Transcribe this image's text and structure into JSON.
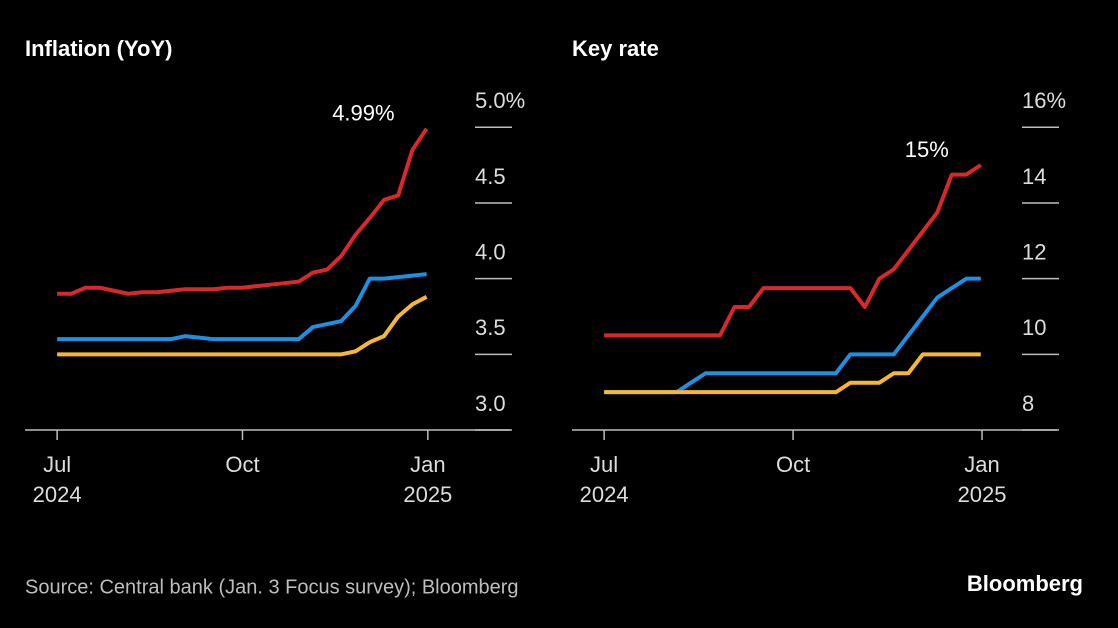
{
  "chart_data": [
    {
      "type": "line",
      "title": "Inflation (YoY)",
      "x": [
        7.0,
        7.23,
        7.46,
        7.69,
        7.92,
        8.15,
        8.38,
        8.61,
        8.84,
        9.07,
        9.3,
        9.53,
        9.76,
        9.99,
        10.22,
        10.45,
        10.68,
        10.91,
        11.14,
        11.37,
        11.6,
        11.83,
        12.06,
        12.29,
        12.52,
        12.75,
        12.98
      ],
      "series": [
        {
          "color": "#d9282d",
          "values": [
            3.9,
            3.9,
            3.94,
            3.94,
            3.92,
            3.9,
            3.91,
            3.91,
            3.92,
            3.93,
            3.93,
            3.93,
            3.94,
            3.94,
            3.95,
            3.96,
            3.97,
            3.98,
            4.04,
            4.06,
            4.15,
            4.29,
            4.4,
            4.52,
            4.55,
            4.85,
            4.99
          ],
          "value_labels": [
            null,
            null,
            null,
            null,
            null,
            null,
            null,
            null,
            null,
            null,
            null,
            null,
            null,
            null,
            null,
            null,
            null,
            null,
            null,
            null,
            null,
            null,
            null,
            null,
            null,
            null,
            "4.99%"
          ]
        },
        {
          "color": "#1e8fe1",
          "values": [
            3.6,
            3.6,
            3.6,
            3.6,
            3.6,
            3.6,
            3.6,
            3.6,
            3.6,
            3.62,
            3.61,
            3.6,
            3.6,
            3.6,
            3.6,
            3.6,
            3.6,
            3.6,
            3.68,
            3.7,
            3.72,
            3.82,
            4.0,
            4.0,
            4.01,
            4.02,
            4.03
          ]
        },
        {
          "color": "#f6b732",
          "values": [
            3.5,
            3.5,
            3.5,
            3.5,
            3.5,
            3.5,
            3.5,
            3.5,
            3.5,
            3.5,
            3.5,
            3.5,
            3.5,
            3.5,
            3.5,
            3.5,
            3.5,
            3.5,
            3.5,
            3.5,
            3.5,
            3.52,
            3.58,
            3.62,
            3.75,
            3.83,
            3.88
          ]
        }
      ],
      "xlim": [
        6.48,
        14.33
      ],
      "xticks": [
        {
          "value": 7,
          "label": "Jul 2024"
        },
        {
          "value": 10,
          "label": "Oct"
        },
        {
          "value": 13,
          "label": "Jan 2025"
        }
      ],
      "ylim": [
        3.0,
        5.2
      ],
      "yticks": [
        {
          "value": 3,
          "label": "3.0"
        },
        3.5,
        {
          "value": 4,
          "label": "4.0"
        },
        4.5,
        {
          "value": 5,
          "label": "5.0%"
        }
      ]
    },
    {
      "type": "line",
      "title": "Key rate",
      "x": [
        7.0,
        7.23,
        7.46,
        7.69,
        7.92,
        8.15,
        8.38,
        8.61,
        8.84,
        9.07,
        9.3,
        9.53,
        9.76,
        9.99,
        10.22,
        10.45,
        10.68,
        10.91,
        11.14,
        11.37,
        11.6,
        11.83,
        12.06,
        12.29,
        12.52,
        12.75,
        12.98
      ],
      "series": [
        {
          "color": "#d9282d",
          "values": [
            10.5,
            10.5,
            10.5,
            10.5,
            10.5,
            10.5,
            10.5,
            10.5,
            10.5,
            11.25,
            11.25,
            11.75,
            11.75,
            11.75,
            11.75,
            11.75,
            11.75,
            11.75,
            11.25,
            12.0,
            12.25,
            12.75,
            13.25,
            13.75,
            14.75,
            14.75,
            15.0
          ],
          "value_labels": [
            null,
            null,
            null,
            null,
            null,
            null,
            null,
            null,
            null,
            null,
            null,
            null,
            null,
            null,
            null,
            null,
            null,
            null,
            null,
            null,
            null,
            null,
            null,
            null,
            null,
            null,
            "15%"
          ]
        },
        {
          "color": "#1e8fe1",
          "values": [
            9.0,
            9.0,
            9.0,
            9.0,
            9.0,
            9.0,
            9.25,
            9.5,
            9.5,
            9.5,
            9.5,
            9.5,
            9.5,
            9.5,
            9.5,
            9.5,
            9.5,
            10.0,
            10.0,
            10.0,
            10.0,
            10.5,
            11.0,
            11.5,
            11.75,
            12.0,
            12.0
          ]
        },
        {
          "color": "#f6b732",
          "values": [
            9.0,
            9.0,
            9.0,
            9.0,
            9.0,
            9.0,
            9.0,
            9.0,
            9.0,
            9.0,
            9.0,
            9.0,
            9.0,
            9.0,
            9.0,
            9.0,
            9.0,
            9.25,
            9.25,
            9.25,
            9.5,
            9.5,
            10.0,
            10.0,
            10.0,
            10.0,
            10.0
          ]
        }
      ],
      "xlim": [
        6.49,
        14.19
      ],
      "xticks": [
        {
          "value": 7,
          "label": "Jul 2024"
        },
        {
          "value": 10,
          "label": "Oct"
        },
        {
          "value": 13,
          "label": "Jan 2025"
        }
      ],
      "ylim": [
        8,
        16.8
      ],
      "yticks": [
        8,
        10,
        12,
        14,
        {
          "value": 16,
          "label": "16%"
        }
      ]
    }
  ],
  "source": "Source: Central bank (Jan. 3 Focus survey); Bloomberg",
  "logo": "Bloomberg"
}
